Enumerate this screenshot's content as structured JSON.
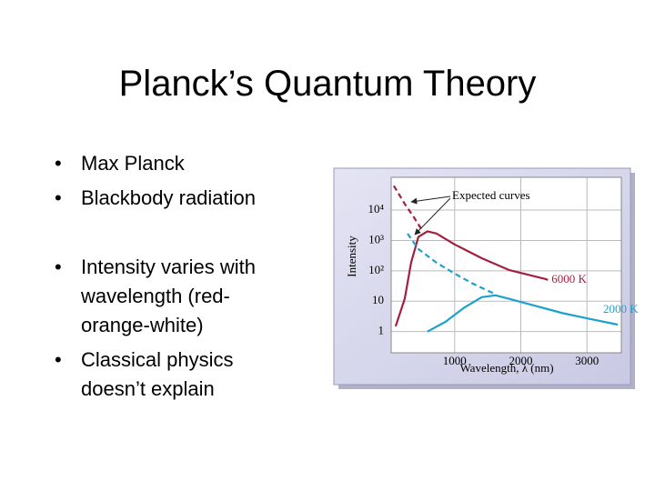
{
  "slide": {
    "title": "Planck’s Quantum Theory",
    "bullets": [
      "Max Planck",
      "Blackbody radiation",
      "Intensity varies with wavelength (red-orange-white)",
      "Classical physics doesn’t explain"
    ]
  },
  "chart_data": {
    "type": "line",
    "log_y": true,
    "grid": true,
    "xlabel": "Wavelength, λ (nm)",
    "ylabel": "Intensity",
    "annotation": "Expected curves",
    "xlim": [
      40,
      3520
    ],
    "ylim": [
      0.2,
      120000
    ],
    "xticks": [
      1000,
      2000,
      3000
    ],
    "yticks": [
      1,
      10,
      {
        "value": 100,
        "label": "10²"
      },
      {
        "value": 1000,
        "label": "10³"
      },
      {
        "value": 10000,
        "label": "10⁴"
      }
    ],
    "series": [
      {
        "name": "6000 K",
        "color": "#a3203f",
        "x": [
          108,
          245,
          341,
          451,
          588,
          725,
          999,
          1410,
          1820,
          2370,
          2410
        ],
        "values": [
          1.5,
          12,
          186,
          1300,
          2000,
          1700,
          740,
          260,
          107,
          54,
          50
        ],
        "expected_x": [
          80,
          245,
          382,
          519
        ],
        "expected_values": [
          63000,
          16000,
          5800,
          2000
        ]
      },
      {
        "name": "2000 K",
        "color": "#1ea0cf",
        "x": [
          588,
          862,
          1136,
          1410,
          1616,
          1820,
          2230,
          2640,
          3050,
          3465
        ],
        "values": [
          1,
          2.1,
          6,
          13.6,
          15.6,
          12,
          6.9,
          4,
          2.6,
          1.7
        ],
        "expected_x": [
          287,
          451,
          725,
          999,
          1273,
          1616
        ],
        "expected_values": [
          1670,
          520,
          185,
          81,
          38,
          17
        ]
      }
    ]
  }
}
